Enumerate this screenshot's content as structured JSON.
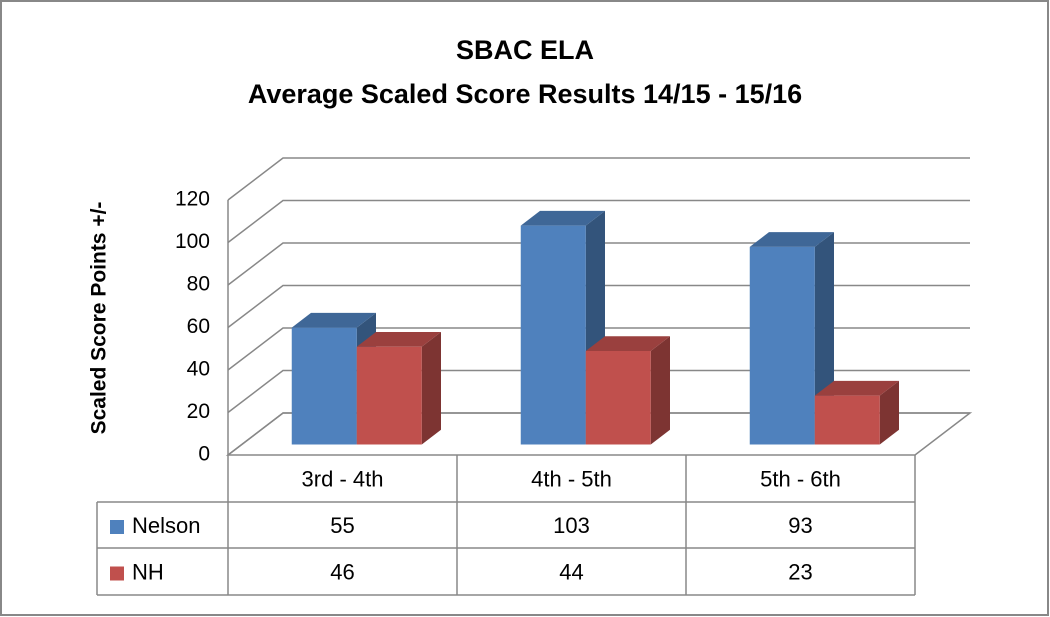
{
  "chart_data": {
    "type": "bar3d",
    "title": "SBAC ELA",
    "subtitle": "Average Scaled Score Results 14/15 - 15/16",
    "y_label": "Scaled Score Points +/-",
    "categories": [
      "3rd - 4th",
      "4th - 5th",
      "5th - 6th"
    ],
    "series": [
      {
        "name": "Nelson",
        "color": "#4f81bd",
        "values": [
          55,
          103,
          93
        ]
      },
      {
        "name": "NH",
        "color": "#c0504d",
        "values": [
          46,
          44,
          23
        ]
      }
    ],
    "ylim": [
      0,
      120
    ],
    "yticks": [
      0,
      20,
      40,
      60,
      80,
      100,
      120
    ],
    "grid": true,
    "data_table": true
  }
}
